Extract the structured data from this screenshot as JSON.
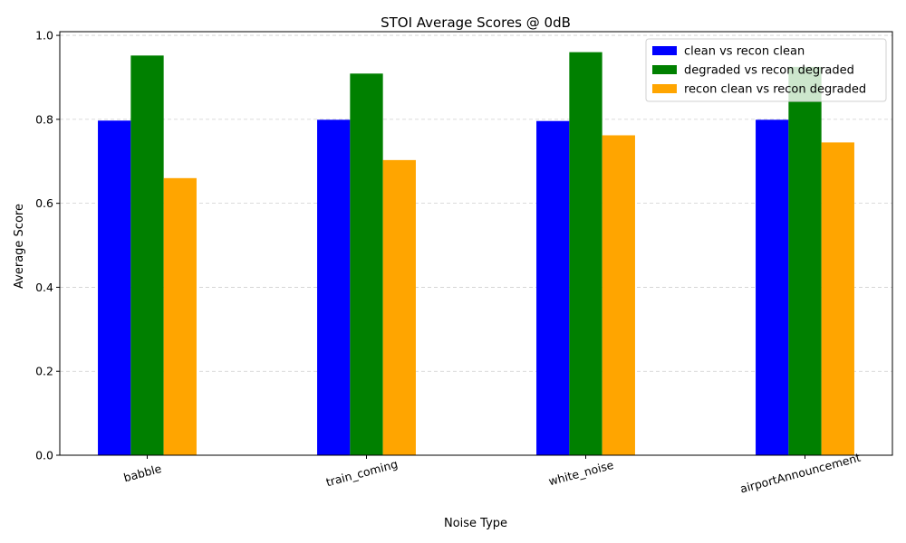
{
  "chart_data": {
    "type": "bar",
    "title": "STOI Average Scores @ 0dB",
    "xlabel": "Noise Type",
    "ylabel": "Average Score",
    "categories": [
      "babble",
      "train_coming",
      "white_noise",
      "airportAnnouncement"
    ],
    "series": [
      {
        "name": "clean vs recon clean",
        "color": "#0000ff",
        "values": [
          0.797,
          0.799,
          0.796,
          0.799
        ]
      },
      {
        "name": "degraded vs recon degraded",
        "color": "#008000",
        "values": [
          0.952,
          0.909,
          0.96,
          0.925
        ]
      },
      {
        "name": "recon clean vs recon degraded",
        "color": "#ffa500",
        "values": [
          0.66,
          0.703,
          0.762,
          0.745
        ]
      }
    ],
    "ylim": [
      0,
      1.0
    ],
    "yticks": [
      "0.0",
      "0.2",
      "0.4",
      "0.6",
      "0.8",
      "1.0"
    ],
    "grid": "y-dashed",
    "legend_position": "top-right",
    "xtick_rotation": -15
  }
}
